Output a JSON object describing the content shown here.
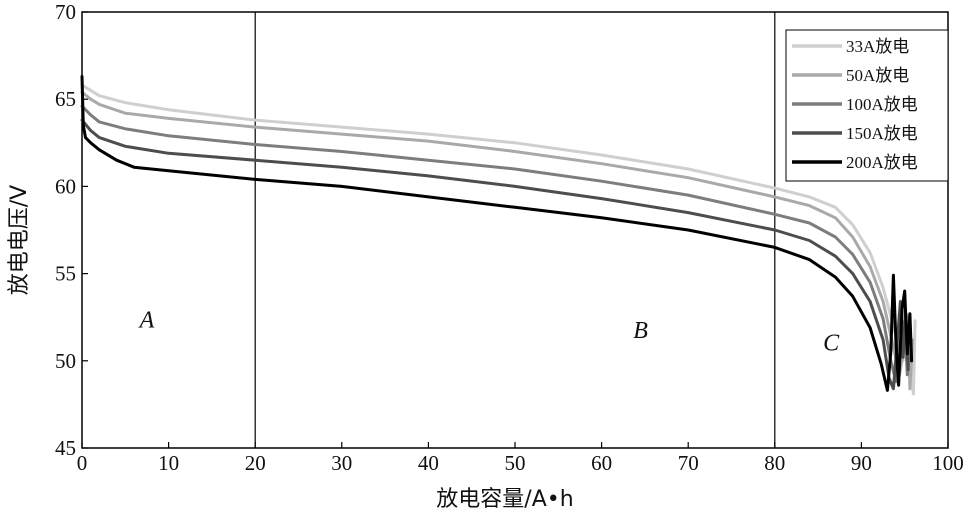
{
  "chart_data": {
    "type": "line",
    "xlabel": "放电容量/A•h",
    "ylabel": "放电电压/V",
    "xlim": [
      0,
      100
    ],
    "ylim": [
      45,
      70
    ],
    "xticks": [
      0,
      10,
      20,
      30,
      40,
      50,
      60,
      70,
      80,
      90,
      100
    ],
    "yticks": [
      45,
      50,
      55,
      60,
      65,
      70
    ],
    "grid": false,
    "legend_position": "top-right",
    "vlines": [
      20,
      80
    ],
    "regions": [
      {
        "label": "A",
        "x": 7.5,
        "y": 51.9
      },
      {
        "label": "B",
        "x": 64.5,
        "y": 51.3
      },
      {
        "label": "C",
        "x": 86.5,
        "y": 50.6
      }
    ],
    "series": [
      {
        "name": "33A放电",
        "color": "#cfcfcf",
        "width": 3,
        "points": [
          [
            0,
            65.8
          ],
          [
            1,
            65.5
          ],
          [
            2,
            65.2
          ],
          [
            5,
            64.8
          ],
          [
            10,
            64.4
          ],
          [
            20,
            63.8
          ],
          [
            30,
            63.4
          ],
          [
            40,
            63.0
          ],
          [
            50,
            62.5
          ],
          [
            60,
            61.8
          ],
          [
            70,
            61.0
          ],
          [
            80,
            59.9
          ],
          [
            84,
            59.4
          ],
          [
            87,
            58.8
          ],
          [
            89,
            57.8
          ],
          [
            91,
            56.2
          ],
          [
            92.5,
            54.2
          ],
          [
            93.8,
            51.8
          ],
          [
            94.8,
            50.0
          ],
          [
            95.3,
            51.4
          ],
          [
            95.6,
            52.3
          ],
          [
            95.8,
            49.0
          ],
          [
            96.0,
            48.1
          ],
          [
            96.2,
            52.3
          ]
        ]
      },
      {
        "name": "50A放电",
        "color": "#a9a9a9",
        "width": 3,
        "points": [
          [
            0,
            65.4
          ],
          [
            1,
            65.0
          ],
          [
            2,
            64.7
          ],
          [
            5,
            64.2
          ],
          [
            10,
            63.9
          ],
          [
            20,
            63.4
          ],
          [
            30,
            63.0
          ],
          [
            40,
            62.6
          ],
          [
            50,
            62.0
          ],
          [
            60,
            61.3
          ],
          [
            70,
            60.5
          ],
          [
            80,
            59.4
          ],
          [
            84,
            58.9
          ],
          [
            87,
            58.2
          ],
          [
            89,
            57.1
          ],
          [
            91,
            55.4
          ],
          [
            92.5,
            53.4
          ],
          [
            93.6,
            51.0
          ],
          [
            94.4,
            49.2
          ],
          [
            95.0,
            51.0
          ],
          [
            95.4,
            52.6
          ],
          [
            95.6,
            48.4
          ],
          [
            95.9,
            51.2
          ]
        ]
      },
      {
        "name": "100A放电",
        "color": "#7d7d7d",
        "width": 3,
        "points": [
          [
            0,
            64.6
          ],
          [
            1,
            64.1
          ],
          [
            2,
            63.7
          ],
          [
            5,
            63.3
          ],
          [
            10,
            62.9
          ],
          [
            20,
            62.4
          ],
          [
            30,
            62.0
          ],
          [
            40,
            61.5
          ],
          [
            50,
            61.0
          ],
          [
            60,
            60.3
          ],
          [
            70,
            59.5
          ],
          [
            80,
            58.4
          ],
          [
            84,
            57.9
          ],
          [
            87,
            57.1
          ],
          [
            89,
            56.1
          ],
          [
            91,
            54.5
          ],
          [
            92.5,
            52.4
          ],
          [
            93.4,
            50.0
          ],
          [
            94.0,
            48.8
          ],
          [
            94.6,
            51.5
          ],
          [
            95.0,
            52.3
          ],
          [
            95.3,
            49.2
          ],
          [
            95.6,
            50.6
          ]
        ]
      },
      {
        "name": "150A放电",
        "color": "#4d4d4d",
        "width": 3,
        "points": [
          [
            0,
            63.8
          ],
          [
            1,
            63.2
          ],
          [
            2,
            62.8
          ],
          [
            5,
            62.3
          ],
          [
            10,
            61.9
          ],
          [
            20,
            61.5
          ],
          [
            30,
            61.1
          ],
          [
            40,
            60.6
          ],
          [
            50,
            60.0
          ],
          [
            60,
            59.3
          ],
          [
            70,
            58.5
          ],
          [
            80,
            57.5
          ],
          [
            84,
            56.9
          ],
          [
            87,
            56.0
          ],
          [
            89,
            55.0
          ],
          [
            91,
            53.4
          ],
          [
            92.5,
            51.2
          ],
          [
            93.2,
            49.0
          ],
          [
            93.7,
            48.4
          ],
          [
            94.2,
            51.5
          ],
          [
            94.5,
            53.4
          ],
          [
            94.8,
            50.2
          ],
          [
            95.1,
            52.8
          ],
          [
            95.4,
            49.5
          ]
        ]
      },
      {
        "name": "200A放电",
        "color": "#000000",
        "width": 3,
        "points": [
          [
            0,
            66.3
          ],
          [
            0.15,
            63.5
          ],
          [
            0.4,
            62.8
          ],
          [
            1,
            62.5
          ],
          [
            2,
            62.1
          ],
          [
            4,
            61.5
          ],
          [
            6,
            61.1
          ],
          [
            10,
            60.9
          ],
          [
            20,
            60.4
          ],
          [
            30,
            60.0
          ],
          [
            40,
            59.4
          ],
          [
            50,
            58.8
          ],
          [
            60,
            58.2
          ],
          [
            70,
            57.5
          ],
          [
            80,
            56.5
          ],
          [
            84,
            55.8
          ],
          [
            87,
            54.8
          ],
          [
            89,
            53.7
          ],
          [
            91,
            51.9
          ],
          [
            92.3,
            49.8
          ],
          [
            93,
            48.3
          ],
          [
            93.4,
            50.5
          ],
          [
            93.7,
            54.9
          ],
          [
            94.0,
            51.0
          ],
          [
            94.3,
            48.6
          ],
          [
            94.7,
            53.0
          ],
          [
            95.0,
            54.0
          ],
          [
            95.3,
            50.4
          ],
          [
            95.6,
            52.7
          ],
          [
            95.8,
            50.0
          ]
        ]
      }
    ]
  }
}
